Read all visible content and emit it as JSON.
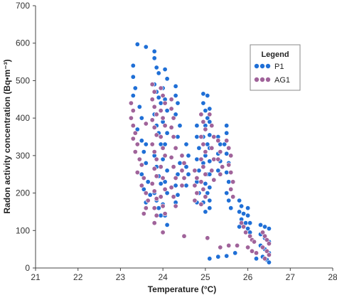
{
  "chart_data": {
    "type": "scatter",
    "xlabel": "Temperature (°C)",
    "ylabel": "Radon activity concentration (Bq•m⁻³)",
    "xlim": [
      21,
      28
    ],
    "ylim": [
      0,
      700
    ],
    "x_ticks": [
      "21",
      "22",
      "23",
      "24",
      "25",
      "26",
      "27",
      "28"
    ],
    "y_ticks": [
      "0",
      "100",
      "200",
      "300",
      "400",
      "500",
      "600",
      "700"
    ],
    "grid": false,
    "legend": {
      "title": "Legend",
      "position": "top-right"
    },
    "series": [
      {
        "name": "P1",
        "color": "#1f6fd6",
        "points": [
          [
            23.3,
            540
          ],
          [
            23.3,
            510
          ],
          [
            23.35,
            480
          ],
          [
            23.3,
            460
          ],
          [
            23.4,
            597
          ],
          [
            23.45,
            430
          ],
          [
            23.5,
            400
          ],
          [
            23.4,
            370
          ],
          [
            23.5,
            340
          ],
          [
            23.55,
            310
          ],
          [
            23.6,
            280
          ],
          [
            23.5,
            250
          ],
          [
            23.65,
            230
          ],
          [
            23.55,
            210
          ],
          [
            23.7,
            195
          ],
          [
            23.6,
            175
          ],
          [
            23.8,
            578
          ],
          [
            23.8,
            560
          ],
          [
            23.85,
            535
          ],
          [
            23.9,
            520
          ],
          [
            23.8,
            490
          ],
          [
            23.85,
            470
          ],
          [
            23.9,
            455
          ],
          [
            23.95,
            440
          ],
          [
            23.8,
            410
          ],
          [
            23.85,
            380
          ],
          [
            23.9,
            360
          ],
          [
            23.95,
            330
          ],
          [
            23.8,
            300
          ],
          [
            23.85,
            270
          ],
          [
            23.9,
            245
          ],
          [
            23.95,
            225
          ],
          [
            23.8,
            200
          ],
          [
            23.85,
            180
          ],
          [
            23.9,
            160
          ],
          [
            23.95,
            140
          ],
          [
            24.05,
            530
          ],
          [
            24.1,
            505
          ],
          [
            24.0,
            480
          ],
          [
            24.05,
            450
          ],
          [
            24.1,
            420
          ],
          [
            24.0,
            390
          ],
          [
            24.1,
            360
          ],
          [
            24.05,
            330
          ],
          [
            24.0,
            290
          ],
          [
            24.1,
            260
          ],
          [
            24.05,
            230
          ],
          [
            24.1,
            200
          ],
          [
            24.0,
            170
          ],
          [
            24.05,
            140
          ],
          [
            24.1,
            115
          ],
          [
            24.3,
            485
          ],
          [
            24.3,
            460
          ],
          [
            24.35,
            440
          ],
          [
            24.3,
            410
          ],
          [
            24.4,
            380
          ],
          [
            24.35,
            350
          ],
          [
            24.3,
            320
          ],
          [
            24.4,
            280
          ],
          [
            24.35,
            250
          ],
          [
            24.3,
            220
          ],
          [
            24.35,
            195
          ],
          [
            24.3,
            175
          ],
          [
            24.55,
            330
          ],
          [
            24.6,
            300
          ],
          [
            24.55,
            270
          ],
          [
            24.6,
            250
          ],
          [
            24.55,
            220
          ],
          [
            24.8,
            380
          ],
          [
            24.8,
            350
          ],
          [
            24.85,
            320
          ],
          [
            24.8,
            290
          ],
          [
            24.85,
            260
          ],
          [
            24.8,
            230
          ],
          [
            24.85,
            200
          ],
          [
            24.8,
            175
          ],
          [
            24.95,
            465
          ],
          [
            24.95,
            440
          ],
          [
            25.0,
            420
          ],
          [
            25.05,
            400
          ],
          [
            25.0,
            380
          ],
          [
            24.95,
            350
          ],
          [
            25.05,
            330
          ],
          [
            25.0,
            300
          ],
          [
            24.95,
            280
          ],
          [
            25.05,
            250
          ],
          [
            25.0,
            225
          ],
          [
            25.05,
            200
          ],
          [
            24.95,
            175
          ],
          [
            25.0,
            150
          ],
          [
            25.05,
            460
          ],
          [
            25.1,
            425
          ],
          [
            25.1,
            390
          ],
          [
            25.1,
            355
          ],
          [
            25.1,
            320
          ],
          [
            25.1,
            285
          ],
          [
            25.1,
            250
          ],
          [
            25.1,
            215
          ],
          [
            25.1,
            180
          ],
          [
            25.1,
            160
          ],
          [
            25.3,
            350
          ],
          [
            25.35,
            330
          ],
          [
            25.3,
            305
          ],
          [
            25.35,
            285
          ],
          [
            25.3,
            260
          ],
          [
            25.5,
            380
          ],
          [
            25.5,
            360
          ],
          [
            25.45,
            330
          ],
          [
            25.5,
            305
          ],
          [
            25.55,
            280
          ],
          [
            25.5,
            255
          ],
          [
            25.55,
            230
          ],
          [
            25.5,
            200
          ],
          [
            25.55,
            180
          ],
          [
            25.6,
            160
          ],
          [
            25.8,
            180
          ],
          [
            25.85,
            165
          ],
          [
            25.8,
            150
          ],
          [
            25.9,
            145
          ],
          [
            25.85,
            130
          ],
          [
            25.95,
            120
          ],
          [
            25.8,
            110
          ],
          [
            26.0,
            160
          ],
          [
            26.0,
            140
          ],
          [
            26.05,
            120
          ],
          [
            26.0,
            105
          ],
          [
            26.05,
            95
          ],
          [
            26.3,
            115
          ],
          [
            26.4,
            110
          ],
          [
            26.5,
            105
          ],
          [
            26.3,
            90
          ],
          [
            26.4,
            80
          ],
          [
            26.5,
            70
          ],
          [
            26.3,
            60
          ],
          [
            26.4,
            50
          ],
          [
            26.5,
            40
          ],
          [
            26.35,
            30
          ],
          [
            26.45,
            22
          ],
          [
            26.5,
            15
          ],
          [
            26.2,
            25
          ],
          [
            25.1,
            25
          ],
          [
            25.3,
            30
          ],
          [
            25.5,
            32
          ],
          [
            25.7,
            40
          ],
          [
            23.6,
            590
          ],
          [
            23.6,
            330
          ]
        ]
      },
      {
        "name": "AG1",
        "color": "#a0639a",
        "points": [
          [
            23.25,
            440
          ],
          [
            23.3,
            420
          ],
          [
            23.25,
            400
          ],
          [
            23.3,
            380
          ],
          [
            23.35,
            360
          ],
          [
            23.3,
            345
          ],
          [
            23.4,
            330
          ],
          [
            23.35,
            310
          ],
          [
            23.45,
            290
          ],
          [
            23.5,
            275
          ],
          [
            23.4,
            255
          ],
          [
            23.55,
            240
          ],
          [
            23.5,
            220
          ],
          [
            23.6,
            200
          ],
          [
            23.65,
            180
          ],
          [
            23.6,
            160
          ],
          [
            23.55,
            145
          ],
          [
            23.6,
            385
          ],
          [
            23.75,
            490
          ],
          [
            23.8,
            470
          ],
          [
            23.75,
            450
          ],
          [
            23.8,
            430
          ],
          [
            23.85,
            410
          ],
          [
            23.75,
            395
          ],
          [
            23.8,
            375
          ],
          [
            23.85,
            355
          ],
          [
            23.75,
            330
          ],
          [
            23.8,
            310
          ],
          [
            23.85,
            290
          ],
          [
            23.8,
            265
          ],
          [
            23.85,
            245
          ],
          [
            23.75,
            225
          ],
          [
            23.8,
            205
          ],
          [
            23.85,
            185
          ],
          [
            23.8,
            160
          ],
          [
            23.85,
            140
          ],
          [
            23.8,
            120
          ],
          [
            23.95,
            480
          ],
          [
            24.0,
            460
          ],
          [
            24.05,
            440
          ],
          [
            23.95,
            420
          ],
          [
            24.0,
            400
          ],
          [
            24.05,
            380
          ],
          [
            23.95,
            350
          ],
          [
            24.0,
            320
          ],
          [
            24.05,
            300
          ],
          [
            23.95,
            270
          ],
          [
            24.0,
            240
          ],
          [
            24.05,
            210
          ],
          [
            23.95,
            190
          ],
          [
            24.0,
            165
          ],
          [
            24.05,
            145
          ],
          [
            24.0,
            95
          ],
          [
            24.2,
            450
          ],
          [
            24.2,
            425
          ],
          [
            24.25,
            400
          ],
          [
            24.2,
            375
          ],
          [
            24.25,
            350
          ],
          [
            24.3,
            320
          ],
          [
            24.2,
            295
          ],
          [
            24.25,
            270
          ],
          [
            24.3,
            240
          ],
          [
            24.2,
            215
          ],
          [
            24.25,
            190
          ],
          [
            24.3,
            165
          ],
          [
            24.45,
            300
          ],
          [
            24.5,
            280
          ],
          [
            24.45,
            260
          ],
          [
            24.5,
            240
          ],
          [
            24.45,
            220
          ],
          [
            24.5,
            85
          ],
          [
            24.75,
            260
          ],
          [
            24.8,
            240
          ],
          [
            24.75,
            220
          ],
          [
            24.8,
            200
          ],
          [
            24.75,
            180
          ],
          [
            24.9,
            410
          ],
          [
            24.95,
            390
          ],
          [
            25.0,
            370
          ],
          [
            24.9,
            350
          ],
          [
            24.95,
            330
          ],
          [
            25.0,
            310
          ],
          [
            24.9,
            290
          ],
          [
            24.95,
            270
          ],
          [
            25.0,
            250
          ],
          [
            24.9,
            230
          ],
          [
            24.95,
            210
          ],
          [
            25.0,
            190
          ],
          [
            24.9,
            170
          ],
          [
            25.05,
            80
          ],
          [
            25.1,
            410
          ],
          [
            25.15,
            380
          ],
          [
            25.2,
            350
          ],
          [
            25.15,
            320
          ],
          [
            25.2,
            290
          ],
          [
            25.15,
            260
          ],
          [
            25.2,
            235
          ],
          [
            25.3,
            340
          ],
          [
            25.35,
            310
          ],
          [
            25.3,
            290
          ],
          [
            25.4,
            270
          ],
          [
            25.35,
            250
          ],
          [
            25.5,
            340
          ],
          [
            25.55,
            320
          ],
          [
            25.6,
            300
          ],
          [
            25.55,
            275
          ],
          [
            25.6,
            255
          ],
          [
            25.65,
            230
          ],
          [
            25.6,
            210
          ],
          [
            25.65,
            190
          ],
          [
            25.85,
            120
          ],
          [
            25.9,
            110
          ],
          [
            25.95,
            95
          ],
          [
            26.05,
            85
          ],
          [
            26.1,
            75
          ],
          [
            26.15,
            70
          ],
          [
            26.0,
            55
          ],
          [
            26.1,
            45
          ],
          [
            26.2,
            40
          ],
          [
            26.35,
            95
          ],
          [
            26.4,
            85
          ],
          [
            26.45,
            75
          ],
          [
            26.5,
            65
          ],
          [
            26.35,
            55
          ],
          [
            26.45,
            45
          ],
          [
            26.5,
            35
          ],
          [
            26.4,
            25
          ],
          [
            25.75,
            60
          ],
          [
            25.55,
            60
          ],
          [
            25.35,
            55
          ]
        ]
      }
    ]
  }
}
